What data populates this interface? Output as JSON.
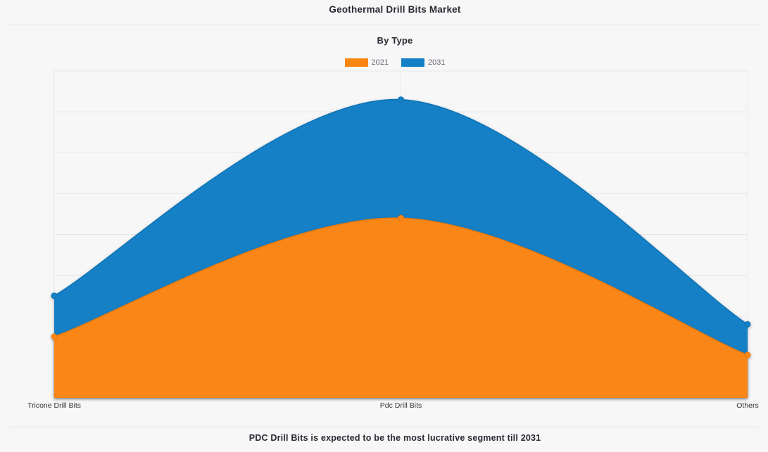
{
  "page": {
    "title": "Geothermal Drill Bits Market",
    "subtitle": "By Type",
    "footer": "PDC Drill Bits is expected to be the most lucrative segment till 2031"
  },
  "legend": [
    {
      "label": "2021",
      "color": "#f98612",
      "line_color": "#e97a0c"
    },
    {
      "label": "2031",
      "color": "#1380c6",
      "line_color": "#0f72b4"
    }
  ],
  "chart_data": {
    "type": "area",
    "subtype": "overlapping-areaspline",
    "title": "Geothermal Drill Bits Market",
    "subtitle": "By Type",
    "categories": [
      "Tricone Drill Bits",
      "Pdc Drill Bits",
      "Others"
    ],
    "series": [
      {
        "name": "2031",
        "color": "#1380c6",
        "line_color": "#0f72b4",
        "values": [
          2.5,
          7.3,
          1.8
        ]
      },
      {
        "name": "2021",
        "color": "#f98612",
        "line_color": "#e97a0c",
        "values": [
          1.5,
          4.4,
          1.05
        ]
      }
    ],
    "xlabel": "",
    "ylabel": "",
    "ylim": [
      0,
      8
    ],
    "y_divisions": 8,
    "y_tick_labels_visible": false,
    "grid": true,
    "legend_position": "top",
    "annotation": "PDC Drill Bits is expected to be the most lucrative segment till 2031"
  },
  "colors": {
    "background": "#f7f7f8",
    "gridline": "#e8e8ec",
    "axis_line": "#dcdce0",
    "divider": "#e3e3e6",
    "title_text": "#2a2a33",
    "axis_text": "#333336",
    "legend_text": "#666670"
  }
}
